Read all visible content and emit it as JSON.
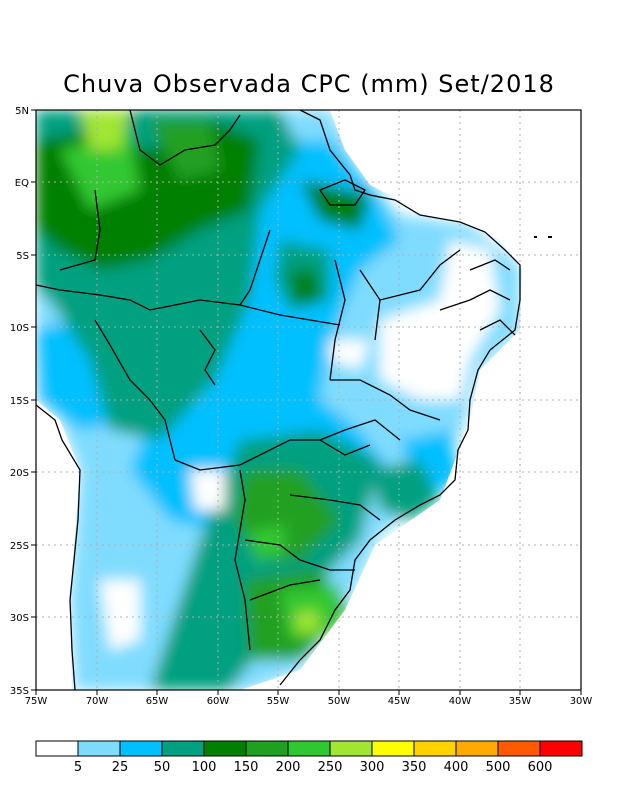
{
  "title": "Chuva Observada CPC (mm) Set/2018",
  "map": {
    "lon_range": [
      -75,
      -30
    ],
    "lat_range": [
      -35,
      5
    ],
    "lon_ticks": [
      "75W",
      "70W",
      "65W",
      "60W",
      "55W",
      "50W",
      "45W",
      "40W",
      "35W",
      "30W"
    ],
    "lat_ticks": [
      "5N",
      "EQ",
      "5S",
      "10S",
      "15S",
      "20S",
      "25S",
      "30S",
      "35S"
    ],
    "gridlines": true
  },
  "colorbar": {
    "labels": [
      "5",
      "25",
      "50",
      "100",
      "150",
      "200",
      "250",
      "300",
      "350",
      "400",
      "500",
      "600"
    ],
    "colors": [
      "#ffffff",
      "#80dcff",
      "#00c0ff",
      "#00a080",
      "#008000",
      "#20a020",
      "#30c830",
      "#a0e632",
      "#ffff00",
      "#ffd200",
      "#ffaa00",
      "#ff5a00",
      "#ff0000"
    ]
  },
  "legend_units": "mm"
}
